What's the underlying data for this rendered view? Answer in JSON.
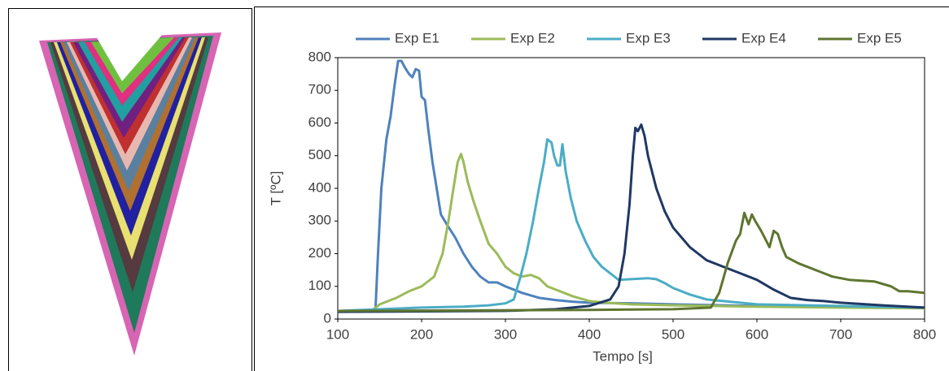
{
  "chart_data": {
    "type": "line",
    "x_label": "Tempo [s]",
    "y_label": "T [ºC]",
    "xlim": [
      100,
      800
    ],
    "xticks": [
      100,
      200,
      300,
      400,
      500,
      600,
      700,
      800
    ],
    "ylim": [
      0,
      800
    ],
    "yticks": [
      0,
      100,
      200,
      300,
      400,
      500,
      600,
      700,
      800
    ],
    "grid": false,
    "legend": "top",
    "series": [
      {
        "name": "Exp E1",
        "color": "#4f81bd",
        "x": [
          100,
          143,
          145,
          148,
          152,
          158,
          163,
          168,
          172,
          176,
          180,
          185,
          189,
          193,
          197,
          200,
          204,
          208,
          213,
          218,
          223,
          230,
          240,
          250,
          260,
          270,
          280,
          290,
          300,
          320,
          340,
          360,
          380,
          400,
          450,
          500,
          600,
          700,
          800
        ],
        "values": [
          25,
          25,
          30,
          200,
          400,
          550,
          620,
          720,
          790,
          790,
          770,
          750,
          740,
          765,
          760,
          680,
          670,
          580,
          480,
          400,
          320,
          290,
          250,
          200,
          160,
          130,
          112,
          112,
          100,
          80,
          65,
          58,
          53,
          50,
          48,
          45,
          40,
          38,
          35
        ]
      },
      {
        "name": "Exp E2",
        "color": "#9bbb59",
        "x": [
          100,
          140,
          150,
          170,
          185,
          200,
          215,
          225,
          232,
          238,
          243,
          247,
          250,
          255,
          262,
          270,
          280,
          290,
          300,
          310,
          320,
          330,
          340,
          350,
          360,
          380,
          400,
          420,
          450,
          500,
          600,
          700,
          800
        ],
        "values": [
          25,
          25,
          45,
          65,
          85,
          100,
          130,
          200,
          300,
          400,
          480,
          505,
          480,
          420,
          360,
          300,
          230,
          200,
          160,
          140,
          130,
          135,
          125,
          100,
          90,
          70,
          55,
          50,
          45,
          42,
          38,
          35,
          33
        ]
      },
      {
        "name": "Exp E3",
        "color": "#4bacc6",
        "x": [
          100,
          200,
          250,
          280,
          300,
          310,
          318,
          325,
          333,
          340,
          346,
          350,
          355,
          358,
          362,
          365,
          368,
          372,
          378,
          385,
          395,
          405,
          415,
          425,
          435,
          450,
          470,
          480,
          490,
          500,
          520,
          540,
          560,
          600,
          700,
          800
        ],
        "values": [
          25,
          35,
          38,
          42,
          48,
          60,
          130,
          200,
          300,
          400,
          480,
          550,
          540,
          500,
          470,
          470,
          535,
          450,
          370,
          300,
          240,
          190,
          160,
          140,
          120,
          122,
          125,
          122,
          110,
          95,
          75,
          60,
          55,
          45,
          40,
          35
        ]
      },
      {
        "name": "Exp E4",
        "color": "#1f3864",
        "x": [
          100,
          300,
          360,
          400,
          425,
          435,
          442,
          448,
          452,
          455,
          458,
          462,
          466,
          470,
          475,
          480,
          490,
          500,
          510,
          520,
          530,
          540,
          560,
          580,
          600,
          620,
          640,
          660,
          680,
          700,
          750,
          800
        ],
        "values": [
          22,
          25,
          30,
          40,
          60,
          100,
          200,
          350,
          500,
          585,
          575,
          595,
          560,
          500,
          450,
          400,
          330,
          280,
          250,
          220,
          200,
          180,
          160,
          140,
          120,
          90,
          65,
          58,
          55,
          50,
          42,
          35
        ]
      },
      {
        "name": "Exp E5",
        "color": "#5f7530",
        "x": [
          100,
          400,
          500,
          545,
          555,
          565,
          575,
          580,
          585,
          590,
          594,
          598,
          605,
          615,
          620,
          625,
          630,
          635,
          650,
          670,
          690,
          710,
          740,
          760,
          770,
          780,
          800
        ],
        "values": [
          25,
          28,
          30,
          35,
          80,
          170,
          240,
          260,
          325,
          290,
          320,
          300,
          270,
          220,
          270,
          260,
          220,
          190,
          170,
          150,
          130,
          120,
          115,
          100,
          85,
          85,
          80
        ]
      }
    ]
  }
}
